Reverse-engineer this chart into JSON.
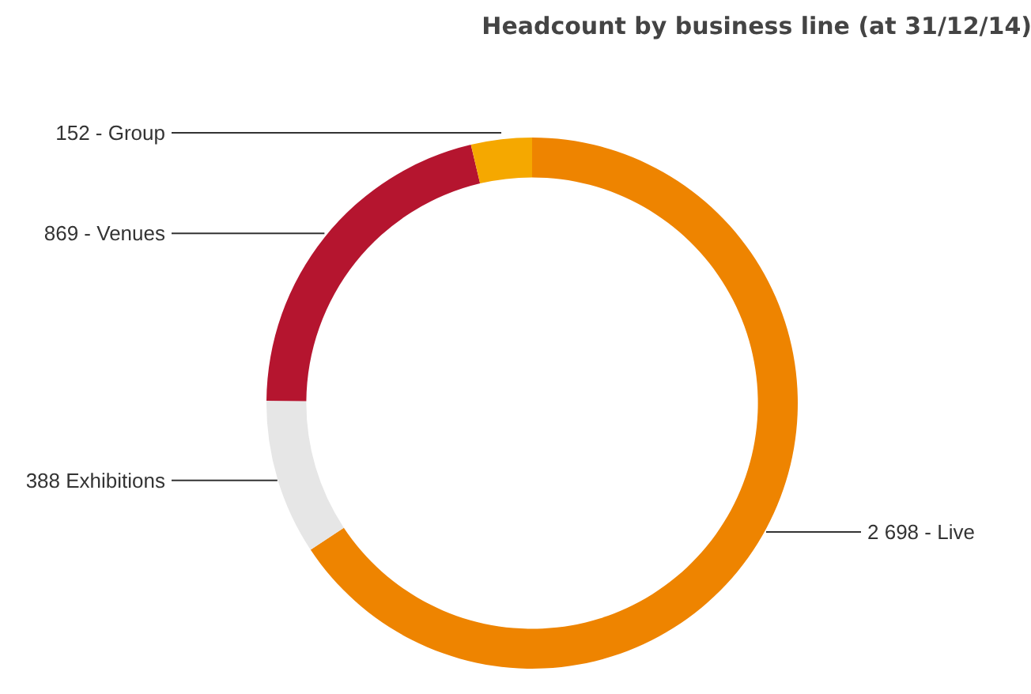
{
  "chart_data": {
    "type": "donut",
    "title": "Headcount by business line (at 31/12/14)",
    "categories": [
      "2 698 - Live",
      "388 Exhibitions",
      "869 - Venues",
      "152 - Group"
    ],
    "values": [
      2698,
      388,
      869,
      152
    ],
    "colors": [
      "#ee8400",
      "#e6e6e6",
      "#b5152f",
      "#f5a800"
    ]
  }
}
